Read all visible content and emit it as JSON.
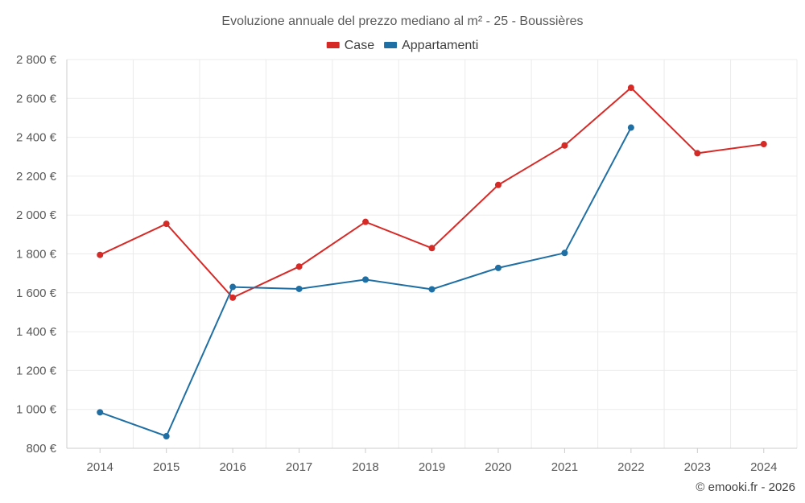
{
  "chart_data": {
    "type": "line",
    "title": "Evoluzione annuale del prezzo mediano al m² - 25 - Boussières",
    "categories": [
      "2014",
      "2015",
      "2016",
      "2017",
      "2018",
      "2019",
      "2020",
      "2021",
      "2022",
      "2023",
      "2024"
    ],
    "series": [
      {
        "name": "Case",
        "color": "#d62a27",
        "values": [
          1795,
          1955,
          1575,
          1735,
          1965,
          1830,
          2155,
          2358,
          2655,
          2318,
          2365
        ]
      },
      {
        "name": "Appartamenti",
        "color": "#1f6fa4",
        "values": [
          985,
          862,
          1630,
          1620,
          1668,
          1618,
          1728,
          1805,
          2450,
          null,
          null
        ]
      }
    ],
    "ylim": [
      800,
      2800
    ],
    "yticks": [
      800,
      1000,
      1200,
      1400,
      1600,
      1800,
      2000,
      2200,
      2400,
      2600,
      2800
    ],
    "ytick_labels": [
      "800 €",
      "1 000 €",
      "1 200 €",
      "1 400 €",
      "1 600 €",
      "1 800 €",
      "2 000 €",
      "2 200 €",
      "2 400 €",
      "2 600 €",
      "2 800 €"
    ],
    "xlabel": "",
    "ylabel": "",
    "grid": true,
    "legend": "top-center"
  },
  "credit": "© emooki.fr - 2026"
}
